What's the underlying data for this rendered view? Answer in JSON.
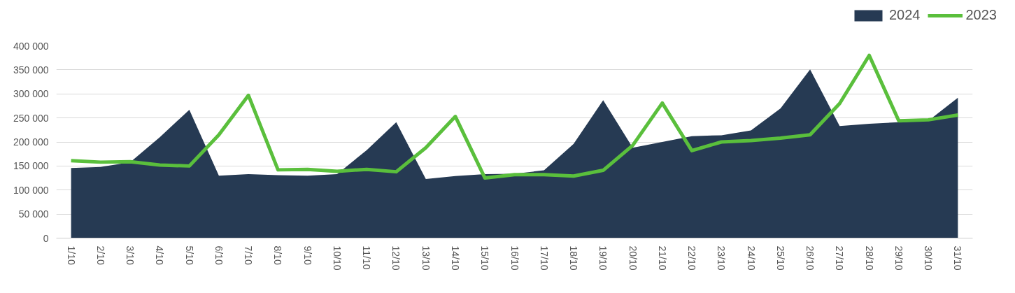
{
  "chart_data": {
    "type": "area",
    "categories": [
      "1/10",
      "2/10",
      "3/10",
      "4/10",
      "5/10",
      "6/10",
      "7/10",
      "8/10",
      "9/10",
      "10/10",
      "11/10",
      "12/10",
      "13/10",
      "14/10",
      "15/10",
      "16/10",
      "17/10",
      "18/10",
      "19/10",
      "20/10",
      "21/10",
      "22/10",
      "23/10",
      "24/10",
      "25/10",
      "26/10",
      "27/10",
      "28/10",
      "29/10",
      "30/10",
      "31/10"
    ],
    "series": [
      {
        "name": "2024",
        "color": "#263a53",
        "values": [
          146000,
          148000,
          158000,
          210000,
          267000,
          130000,
          133000,
          131000,
          130000,
          133000,
          183000,
          241000,
          123000,
          129000,
          133000,
          134000,
          141000,
          196000,
          287000,
          188000,
          200000,
          212000,
          214000,
          224000,
          270000,
          351000,
          233000,
          238000,
          241000,
          244000,
          292000
        ]
      },
      {
        "name": "2023",
        "type": "line",
        "color": "#5abf3c",
        "values": [
          161000,
          158000,
          159000,
          152000,
          150000,
          215000,
          297000,
          142000,
          143000,
          139000,
          143000,
          138000,
          188000,
          253000,
          125000,
          132000,
          132000,
          129000,
          141000,
          193000,
          281000,
          182000,
          200000,
          203000,
          208000,
          215000,
          280000,
          380000,
          244000,
          246000,
          256000
        ]
      }
    ],
    "ylim": [
      0,
      400000
    ],
    "yticks": [
      0,
      {
        "value": 50000,
        "label": "50 000"
      },
      {
        "value": 100000,
        "label": "100 000"
      },
      {
        "value": 150000,
        "label": "150 000"
      },
      {
        "value": 200000,
        "label": "200 000"
      },
      {
        "value": 250000,
        "label": "250 000"
      },
      {
        "value": 300000,
        "label": "300 000"
      },
      {
        "value": 350000,
        "label": "350 000"
      },
      {
        "value": 400000,
        "label": "400 000"
      }
    ],
    "grid": "y",
    "legend": "top right",
    "marker": "none",
    "line_style": "solid"
  }
}
